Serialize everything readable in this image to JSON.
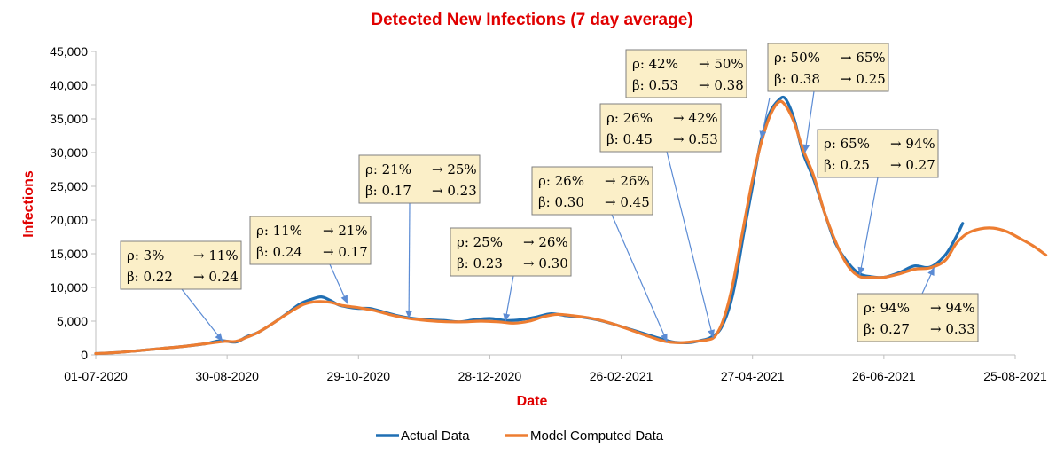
{
  "chart_data": {
    "type": "line",
    "title": "Detected New Infections (7 day average)",
    "xlabel": "Date",
    "ylabel": "Infections",
    "ylim": [
      0,
      45000
    ],
    "y_ticks": [
      0,
      5000,
      10000,
      15000,
      20000,
      25000,
      30000,
      35000,
      40000,
      45000
    ],
    "y_tick_labels": [
      "0",
      "5,000",
      "10,000",
      "15,000",
      "20,000",
      "25,000",
      "30,000",
      "35,000",
      "40,000",
      "45,000"
    ],
    "x_range": [
      "2020-07-01",
      "2021-08-25"
    ],
    "x_ticks": [
      "2020-07-01",
      "2020-08-30",
      "2020-10-29",
      "2020-12-28",
      "2021-02-26",
      "2021-04-27",
      "2021-06-26",
      "2021-08-25"
    ],
    "x_tick_labels": [
      "01-07-2020",
      "30-08-2020",
      "29-10-2020",
      "28-12-2020",
      "26-02-2021",
      "27-04-2021",
      "26-06-2021",
      "25-08-2021"
    ],
    "grid": false,
    "legend_position": "bottom",
    "series": [
      {
        "name": "Actual Data",
        "color": "#1f6fb4",
        "points": [
          [
            "2020-07-01",
            200
          ],
          [
            "2020-07-11",
            350
          ],
          [
            "2020-07-21",
            650
          ],
          [
            "2020-07-31",
            950
          ],
          [
            "2020-08-10",
            1250
          ],
          [
            "2020-08-20",
            1650
          ],
          [
            "2020-08-27",
            2100
          ],
          [
            "2020-09-03",
            1900
          ],
          [
            "2020-09-08",
            2700
          ],
          [
            "2020-09-13",
            3300
          ],
          [
            "2020-09-20",
            4700
          ],
          [
            "2020-09-27",
            6300
          ],
          [
            "2020-10-02",
            7500
          ],
          [
            "2020-10-07",
            8200
          ],
          [
            "2020-10-12",
            8600
          ],
          [
            "2020-10-16",
            8100
          ],
          [
            "2020-10-20",
            7400
          ],
          [
            "2020-10-24",
            7100
          ],
          [
            "2020-10-29",
            6900
          ],
          [
            "2020-11-03",
            6900
          ],
          [
            "2020-11-08",
            6500
          ],
          [
            "2020-11-16",
            5800
          ],
          [
            "2020-11-23",
            5400
          ],
          [
            "2020-11-30",
            5200
          ],
          [
            "2020-12-07",
            5100
          ],
          [
            "2020-12-14",
            4900
          ],
          [
            "2020-12-21",
            5200
          ],
          [
            "2020-12-28",
            5400
          ],
          [
            "2021-01-04",
            5100
          ],
          [
            "2021-01-11",
            5200
          ],
          [
            "2021-01-18",
            5600
          ],
          [
            "2021-01-25",
            6100
          ],
          [
            "2021-02-01",
            5800
          ],
          [
            "2021-02-08",
            5600
          ],
          [
            "2021-02-15",
            5200
          ],
          [
            "2021-02-22",
            4600
          ],
          [
            "2021-03-01",
            3900
          ],
          [
            "2021-03-08",
            3200
          ],
          [
            "2021-03-15",
            2500
          ],
          [
            "2021-03-22",
            1900
          ],
          [
            "2021-03-29",
            1800
          ],
          [
            "2021-04-03",
            2100
          ],
          [
            "2021-04-08",
            2600
          ],
          [
            "2021-04-13",
            4200
          ],
          [
            "2021-04-18",
            9000
          ],
          [
            "2021-04-23",
            18000
          ],
          [
            "2021-04-27",
            25000
          ],
          [
            "2021-05-01",
            32000
          ],
          [
            "2021-05-05",
            36000
          ],
          [
            "2021-05-09",
            37800
          ],
          [
            "2021-05-12",
            38000
          ],
          [
            "2021-05-16",
            35000
          ],
          [
            "2021-05-20",
            30000
          ],
          [
            "2021-05-25",
            26000
          ],
          [
            "2021-05-30",
            21000
          ],
          [
            "2021-06-04",
            16500
          ],
          [
            "2021-06-10",
            13500
          ],
          [
            "2021-06-15",
            12000
          ],
          [
            "2021-06-20",
            11600
          ],
          [
            "2021-06-26",
            11500
          ],
          [
            "2021-07-03",
            12200
          ],
          [
            "2021-07-10",
            13200
          ],
          [
            "2021-07-17",
            13000
          ],
          [
            "2021-07-24",
            14800
          ],
          [
            "2021-07-29",
            17500
          ],
          [
            "2021-08-01",
            19500
          ]
        ]
      },
      {
        "name": "Model Computed Data",
        "color": "#ed7d31",
        "points": [
          [
            "2020-07-01",
            200
          ],
          [
            "2020-07-11",
            350
          ],
          [
            "2020-07-21",
            650
          ],
          [
            "2020-07-31",
            950
          ],
          [
            "2020-08-10",
            1250
          ],
          [
            "2020-08-20",
            1650
          ],
          [
            "2020-08-29",
            2000
          ],
          [
            "2020-09-03",
            2000
          ],
          [
            "2020-09-08",
            2600
          ],
          [
            "2020-09-13",
            3300
          ],
          [
            "2020-09-20",
            4700
          ],
          [
            "2020-09-27",
            6200
          ],
          [
            "2020-10-04",
            7500
          ],
          [
            "2020-10-10",
            7900
          ],
          [
            "2020-10-16",
            7800
          ],
          [
            "2020-10-22",
            7300
          ],
          [
            "2020-10-29",
            7000
          ],
          [
            "2020-11-05",
            6600
          ],
          [
            "2020-11-12",
            6000
          ],
          [
            "2020-11-19",
            5500
          ],
          [
            "2020-11-26",
            5200
          ],
          [
            "2020-12-03",
            5000
          ],
          [
            "2020-12-10",
            4900
          ],
          [
            "2020-12-17",
            4900
          ],
          [
            "2020-12-24",
            5000
          ],
          [
            "2021-01-01",
            4900
          ],
          [
            "2021-01-08",
            4700
          ],
          [
            "2021-01-15",
            5000
          ],
          [
            "2021-01-22",
            5700
          ],
          [
            "2021-01-28",
            6000
          ],
          [
            "2021-02-04",
            5800
          ],
          [
            "2021-02-11",
            5500
          ],
          [
            "2021-02-18",
            5000
          ],
          [
            "2021-02-25",
            4300
          ],
          [
            "2021-03-04",
            3500
          ],
          [
            "2021-03-11",
            2700
          ],
          [
            "2021-03-18",
            2000
          ],
          [
            "2021-03-25",
            1800
          ],
          [
            "2021-04-01",
            2000
          ],
          [
            "2021-04-06",
            2200
          ],
          [
            "2021-04-10",
            2800
          ],
          [
            "2021-04-14",
            5500
          ],
          [
            "2021-04-18",
            10500
          ],
          [
            "2021-04-22",
            17500
          ],
          [
            "2021-04-27",
            26000
          ],
          [
            "2021-05-01",
            31500
          ],
          [
            "2021-05-05",
            35500
          ],
          [
            "2021-05-09",
            37500
          ],
          [
            "2021-05-12",
            37000
          ],
          [
            "2021-05-16",
            34500
          ],
          [
            "2021-05-20",
            30500
          ],
          [
            "2021-05-25",
            26500
          ],
          [
            "2021-05-30",
            21000
          ],
          [
            "2021-06-05",
            16000
          ],
          [
            "2021-06-10",
            13000
          ],
          [
            "2021-06-15",
            11600
          ],
          [
            "2021-06-20",
            11500
          ],
          [
            "2021-06-26",
            11500
          ],
          [
            "2021-07-03",
            12000
          ],
          [
            "2021-07-10",
            12700
          ],
          [
            "2021-07-17",
            12900
          ],
          [
            "2021-07-24",
            14000
          ],
          [
            "2021-07-29",
            16500
          ],
          [
            "2021-08-03",
            18000
          ],
          [
            "2021-08-09",
            18700
          ],
          [
            "2021-08-15",
            18800
          ],
          [
            "2021-08-21",
            18300
          ],
          [
            "2021-08-27",
            17300
          ],
          [
            "2021-09-02",
            16200
          ],
          [
            "2021-09-08",
            14800
          ]
        ]
      }
    ],
    "annotations": [
      {
        "rho": [
          "ρ: 3%",
          "→ 11%"
        ],
        "beta": [
          "β: 0.22",
          "→ 0.24"
        ],
        "target": [
          "2020-08-28",
          2000
        ]
      },
      {
        "rho": [
          "ρ: 11%",
          "→ 21%"
        ],
        "beta": [
          "β: 0.24",
          "→ 0.17"
        ],
        "target": [
          "2020-10-24",
          7600
        ]
      },
      {
        "rho": [
          "ρ: 21%",
          "→ 25%"
        ],
        "beta": [
          "β: 0.17",
          "→ 0.23"
        ],
        "target": [
          "2020-11-21",
          5400
        ]
      },
      {
        "rho": [
          "ρ: 25%",
          "→ 26%"
        ],
        "beta": [
          "β: 0.23",
          "→ 0.30"
        ],
        "target": [
          "2021-01-04",
          4900
        ]
      },
      {
        "rho": [
          "ρ: 26%",
          "→ 26%"
        ],
        "beta": [
          "β: 0.30",
          "→ 0.45"
        ],
        "target": [
          "2021-03-19",
          1900
        ]
      },
      {
        "rho": [
          "ρ: 26%",
          "→ 42%"
        ],
        "beta": [
          "β: 0.45",
          "→ 0.53"
        ],
        "target": [
          "2021-04-09",
          2500
        ]
      },
      {
        "rho": [
          "ρ: 42%",
          "→ 50%"
        ],
        "beta": [
          "β: 0.53",
          "→ 0.38"
        ],
        "target": [
          "2021-05-01",
          32000
        ]
      },
      {
        "rho": [
          "ρ: 50%",
          "→ 65%"
        ],
        "beta": [
          "β: 0.38",
          "→ 0.25"
        ],
        "target": [
          "2021-05-21",
          30000
        ]
      },
      {
        "rho": [
          "ρ: 65%",
          "→ 94%"
        ],
        "beta": [
          "β: 0.25",
          "→ 0.27"
        ],
        "target": [
          "2021-06-15",
          11800
        ]
      },
      {
        "rho": [
          "ρ: 94%",
          "→ 94%"
        ],
        "beta": [
          "β: 0.27",
          "→ 0.33"
        ],
        "target": [
          "2021-07-19",
          13000
        ]
      }
    ]
  }
}
